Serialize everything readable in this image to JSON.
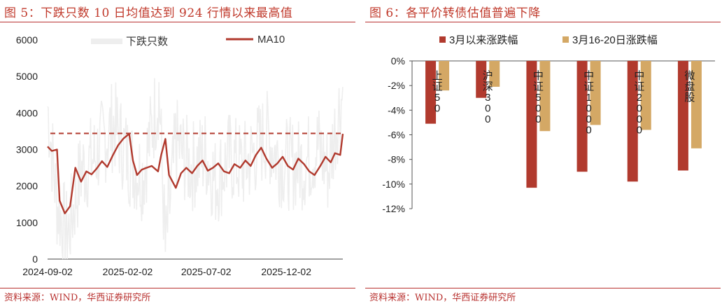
{
  "colors": {
    "accent": "#b8312f",
    "ma_line": "#b13a2e",
    "daily_band": "#eeeeee",
    "bar_since_march": "#b13a2e",
    "bar_week": "#d4a865"
  },
  "left": {
    "title": "图 5：下跌只数 10 日均值达到 924 行情以来最高值",
    "source": "资料来源：WIND，华西证券研究所",
    "chart_data": {
      "type": "line",
      "x_ticks": [
        "2024-09-02",
        "2025-02-02",
        "2025-07-02",
        "2025-12-02"
      ],
      "x_range": [
        "2024-09-02",
        "2026-03-20"
      ],
      "ylim": [
        0,
        6000
      ],
      "y_ticks": [
        0,
        1000,
        2000,
        3000,
        4000,
        5000,
        6000
      ],
      "reference_line": 3440,
      "legend": "top",
      "series": [
        {
          "name": "下跌只数",
          "x": [
            "2024-09-02",
            "2024-09-20",
            "2024-10-10",
            "2024-11-05",
            "2024-12-01",
            "2025-01-06",
            "2025-02-05",
            "2025-03-03",
            "2025-04-03",
            "2025-04-15",
            "2025-05-05",
            "2025-06-02",
            "2025-07-01",
            "2025-07-20",
            "2025-08-15",
            "2025-09-10",
            "2025-10-01",
            "2025-10-25",
            "2025-11-20",
            "2025-12-10",
            "2026-01-05",
            "2026-02-01",
            "2026-02-20",
            "2026-03-10",
            "2026-03-20"
          ],
          "values": [
            4200,
            1500,
            600,
            2400,
            2800,
            3700,
            2700,
            2300,
            4600,
            200,
            3200,
            2500,
            2900,
            2100,
            2800,
            2500,
            2900,
            3400,
            2700,
            2600,
            2600,
            3100,
            2400,
            3900,
            4600
          ]
        },
        {
          "name": "MA10",
          "x": [
            "2024-09-02",
            "2024-09-10",
            "2024-09-20",
            "2024-09-25",
            "2024-10-05",
            "2024-10-15",
            "2024-10-25",
            "2024-11-05",
            "2024-11-15",
            "2024-11-25",
            "2024-12-05",
            "2024-12-15",
            "2024-12-25",
            "2025-01-05",
            "2025-01-15",
            "2025-01-25",
            "2025-02-05",
            "2025-02-12",
            "2025-02-20",
            "2025-03-01",
            "2025-03-10",
            "2025-03-20",
            "2025-04-01",
            "2025-04-07",
            "2025-04-15",
            "2025-04-22",
            "2025-05-05",
            "2025-05-15",
            "2025-05-25",
            "2025-06-05",
            "2025-06-15",
            "2025-06-25",
            "2025-07-05",
            "2025-07-15",
            "2025-07-25",
            "2025-08-05",
            "2025-08-15",
            "2025-08-25",
            "2025-09-05",
            "2025-09-15",
            "2025-09-25",
            "2025-10-05",
            "2025-10-15",
            "2025-10-25",
            "2025-11-05",
            "2025-11-15",
            "2025-11-25",
            "2025-12-05",
            "2025-12-15",
            "2025-12-25",
            "2026-01-05",
            "2026-01-15",
            "2026-01-25",
            "2026-02-05",
            "2026-02-15",
            "2026-02-25",
            "2026-03-05",
            "2026-03-15",
            "2026-03-20"
          ],
          "values": [
            3080,
            2960,
            3000,
            1600,
            1250,
            1450,
            2500,
            2120,
            2400,
            2320,
            2480,
            2680,
            2520,
            2850,
            3120,
            3300,
            3430,
            2700,
            2300,
            2450,
            2500,
            2550,
            2400,
            2850,
            3290,
            2300,
            1950,
            2350,
            2500,
            2350,
            2550,
            2700,
            2420,
            2500,
            2620,
            2400,
            2350,
            2600,
            2500,
            2700,
            2550,
            2850,
            3050,
            2750,
            2500,
            2620,
            2800,
            2550,
            2450,
            2750,
            2600,
            2400,
            2300,
            2550,
            2800,
            2650,
            2900,
            2850,
            3430
          ]
        }
      ]
    }
  },
  "right": {
    "title": "图 6：各平价转债估值普遍下降",
    "source": "资料来源：WIND，华西证券研究所",
    "chart_data": {
      "type": "bar",
      "categories": [
        "上证50",
        "沪深300",
        "中证500",
        "中证1000",
        "中证2000",
        "微盘股"
      ],
      "ylim": [
        -12,
        0
      ],
      "y_ticks": [
        "0%",
        "-2%",
        "-4%",
        "-6%",
        "-8%",
        "-10%",
        "-12%"
      ],
      "unit": "%",
      "legend": "top",
      "series": [
        {
          "name": "3月以来涨跌幅",
          "values": [
            -5.1,
            -3.0,
            -10.3,
            -9.0,
            -9.8,
            -8.9
          ]
        },
        {
          "name": "3月16-20日涨跌幅",
          "values": [
            -2.4,
            -2.1,
            -5.7,
            -5.2,
            -5.6,
            -7.1
          ]
        }
      ]
    }
  }
}
